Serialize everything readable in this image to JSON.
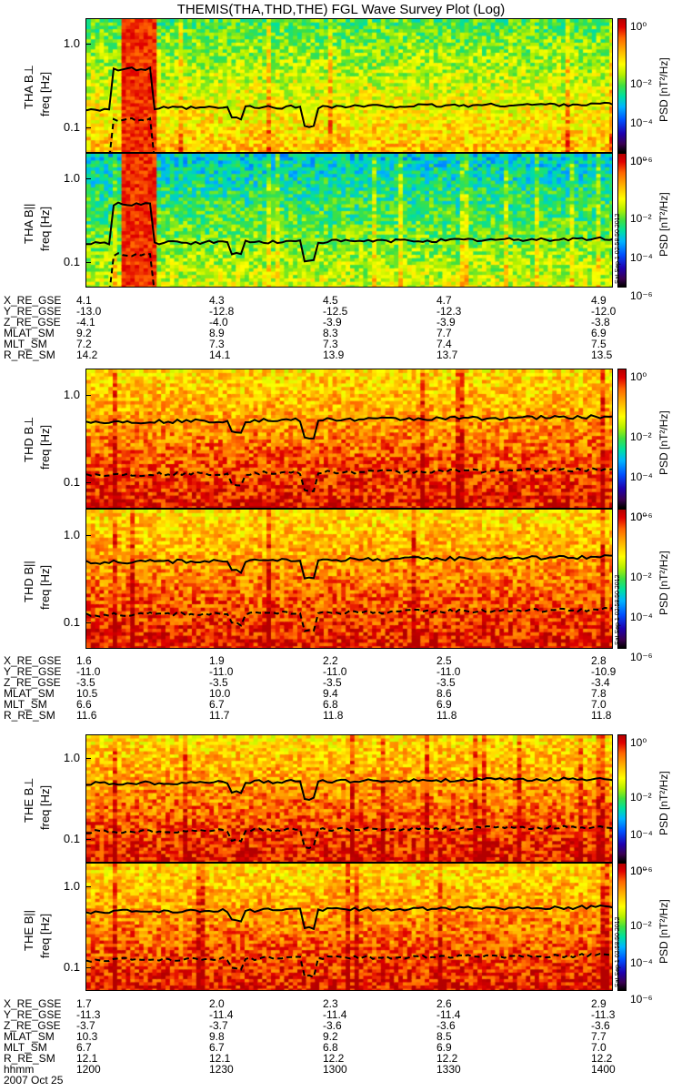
{
  "title": "THEMIS(THA,THD,THE) FGL Wave Survey Plot (Log)",
  "colorbar": {
    "label": "PSD [nT²/Hz]",
    "ticks": [
      "10⁰",
      "10⁻²",
      "10⁻⁴",
      "10⁻⁶"
    ],
    "colors": [
      "#000000",
      "#1e00b0",
      "#0050ff",
      "#00b4ff",
      "#40e040",
      "#ffff00",
      "#ff6400",
      "#b40000"
    ]
  },
  "freq_ticks": [
    "1.0",
    "0.1"
  ],
  "date_label": "2007 Oct 25",
  "timestamp": "Sat Sep  1 02:58:50 2012",
  "chart_data": [
    {
      "type": "heatmap",
      "probe": "THA",
      "component": "perp",
      "ylabel": "THA B⊥",
      "yunit": "freq [Hz]",
      "ylim": [
        0.05,
        2.0
      ],
      "yscale": "log",
      "zunit": "PSD [nT²/Hz]",
      "zlim": [
        1e-06,
        10
      ],
      "level": "low"
    },
    {
      "type": "heatmap",
      "probe": "THA",
      "component": "par",
      "ylabel": "THA B||",
      "yunit": "freq [Hz]",
      "ylim": [
        0.05,
        2.0
      ],
      "yscale": "log",
      "zunit": "PSD [nT²/Hz]",
      "zlim": [
        1e-06,
        10
      ],
      "level": "lower"
    },
    {
      "type": "heatmap",
      "probe": "THD",
      "component": "perp",
      "ylabel": "THD B⊥",
      "yunit": "freq [Hz]",
      "ylim": [
        0.05,
        2.0
      ],
      "yscale": "log",
      "zunit": "PSD [nT²/Hz]",
      "zlim": [
        1e-06,
        10
      ],
      "level": "high"
    },
    {
      "type": "heatmap",
      "probe": "THD",
      "component": "par",
      "ylabel": "THD B||",
      "yunit": "freq [Hz]",
      "ylim": [
        0.05,
        2.0
      ],
      "yscale": "log",
      "zunit": "PSD [nT²/Hz]",
      "zlim": [
        1e-06,
        10
      ],
      "level": "high"
    },
    {
      "type": "heatmap",
      "probe": "THE",
      "component": "perp",
      "ylabel": "THE B⊥",
      "yunit": "freq [Hz]",
      "ylim": [
        0.05,
        2.0
      ],
      "yscale": "log",
      "zunit": "PSD [nT²/Hz]",
      "zlim": [
        1e-06,
        10
      ],
      "level": "high"
    },
    {
      "type": "heatmap",
      "probe": "THE",
      "component": "par",
      "ylabel": "THE B||",
      "yunit": "freq [Hz]",
      "ylim": [
        0.05,
        2.0
      ],
      "yscale": "log",
      "zunit": "PSD [nT²/Hz]",
      "zlim": [
        1e-06,
        10
      ],
      "level": "high"
    }
  ],
  "ephemeris": [
    {
      "labels": [
        "X_RE_GSE",
        "Y_RE_GSE",
        "Z_RE_GSE",
        "MLAT_SM",
        "MLT_SM",
        "R_RE_SM"
      ],
      "columns": [
        [
          "4.1",
          "-13.0",
          "-4.1",
          "9.2",
          "7.2",
          "14.2"
        ],
        [
          "4.3",
          "-12.8",
          "-4.0",
          "8.9",
          "7.3",
          "14.1"
        ],
        [
          "4.5",
          "-12.5",
          "-3.9",
          "8.3",
          "7.3",
          "13.9"
        ],
        [
          "4.7",
          "-12.3",
          "-3.9",
          "7.7",
          "7.4",
          "13.7"
        ],
        [
          "4.9",
          "-12.0",
          "-3.8",
          "6.9",
          "7.5",
          "13.5"
        ]
      ]
    },
    {
      "labels": [
        "X_RE_GSE",
        "Y_RE_GSE",
        "Z_RE_GSE",
        "MLAT_SM",
        "MLT_SM",
        "R_RE_SM"
      ],
      "columns": [
        [
          "1.6",
          "-11.0",
          "-3.5",
          "10.5",
          "6.6",
          "11.6"
        ],
        [
          "1.9",
          "-11.0",
          "-3.5",
          "10.0",
          "6.7",
          "11.7"
        ],
        [
          "2.2",
          "-11.0",
          "-3.5",
          "9.4",
          "6.8",
          "11.8"
        ],
        [
          "2.5",
          "-11.0",
          "-3.5",
          "8.6",
          "6.9",
          "11.8"
        ],
        [
          "2.8",
          "-10.9",
          "-3.4",
          "7.8",
          "7.0",
          "11.8"
        ]
      ]
    },
    {
      "labels": [
        "X_RE_GSE",
        "Y_RE_GSE",
        "Z_RE_GSE",
        "MLAT_SM",
        "MLT_SM",
        "R_RE_SM",
        "hhmm"
      ],
      "columns": [
        [
          "1.7",
          "-11.3",
          "-3.7",
          "10.3",
          "6.7",
          "12.1",
          "1200"
        ],
        [
          "2.0",
          "-11.4",
          "-3.7",
          "9.8",
          "6.7",
          "12.1",
          "1230"
        ],
        [
          "2.3",
          "-11.4",
          "-3.6",
          "9.2",
          "6.8",
          "12.2",
          "1300"
        ],
        [
          "2.6",
          "-11.4",
          "-3.6",
          "8.5",
          "6.9",
          "12.2",
          "1330"
        ],
        [
          "2.9",
          "-11.3",
          "-3.6",
          "7.7",
          "7.0",
          "12.2",
          "1400"
        ]
      ]
    }
  ]
}
